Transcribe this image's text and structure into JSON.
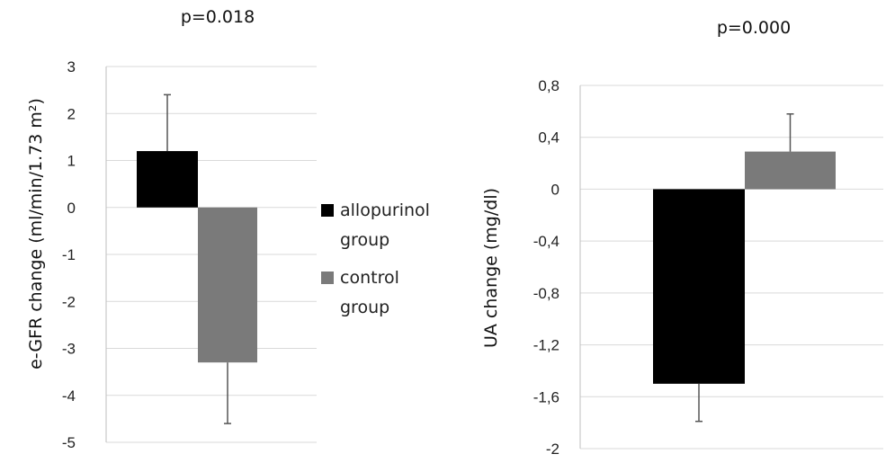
{
  "legend": {
    "items": [
      {
        "line1": "allopurinol",
        "line2": "group",
        "color": "#000000"
      },
      {
        "line1": "control",
        "line2": "group",
        "color": "#7a7a7a"
      }
    ]
  },
  "chart_data": [
    {
      "type": "bar",
      "title": "p=0.018",
      "ylabel": "e-GFR change (ml/min/1.73 m²)",
      "ylim": [
        -5,
        3
      ],
      "yticks": [
        "3",
        "2",
        "1",
        "0",
        "-1",
        "-2",
        "-3",
        "-4",
        "-5"
      ],
      "grid": true,
      "series": [
        {
          "name": "allopurinol group",
          "value": 1.2,
          "error": 1.2,
          "color": "#000000"
        },
        {
          "name": "control group",
          "value": -3.3,
          "error": 1.3,
          "color": "#7a7a7a"
        }
      ]
    },
    {
      "type": "bar",
      "title": "p=0.000",
      "ylabel": "UA change (mg/dl)",
      "ylim": [
        -2,
        0.8
      ],
      "yticks": [
        "0,8",
        "0,4",
        "0",
        "-0,4",
        "-0,8",
        "-1,2",
        "-1,6",
        "-2"
      ],
      "grid": true,
      "series": [
        {
          "name": "allopurinol group",
          "value": -1.5,
          "error": 0.29,
          "color": "#000000"
        },
        {
          "name": "control group",
          "value": 0.29,
          "error": 0.29,
          "color": "#7a7a7a"
        }
      ]
    }
  ]
}
